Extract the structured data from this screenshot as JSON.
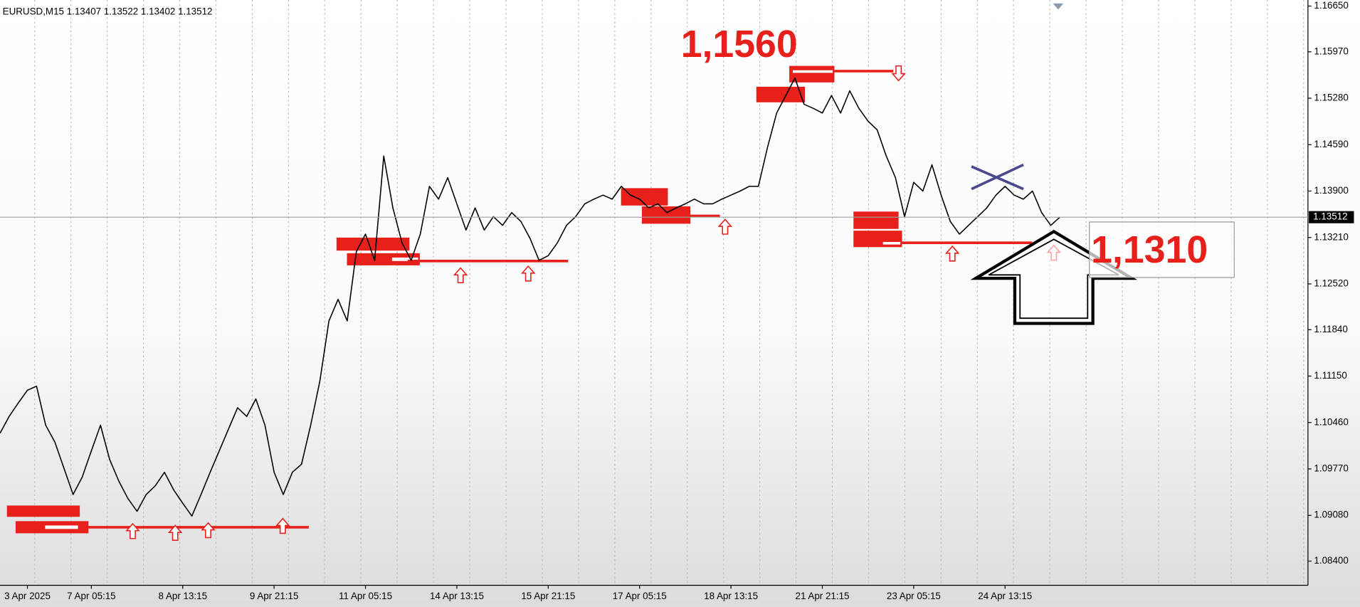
{
  "chart_data": {
    "type": "line",
    "title": "EURUSD,M15  1.13407 1.13522 1.13402 1.13512",
    "categories": [
      null,
      null,
      null,
      "3 Apr 2025",
      null,
      null,
      null,
      null,
      null,
      null,
      "7 Apr 05:15",
      null,
      null,
      null,
      null,
      null,
      null,
      null,
      null,
      null,
      "8 Apr 13:15",
      null,
      null,
      null,
      null,
      null,
      null,
      null,
      null,
      null,
      "9 Apr 21:15",
      null,
      null,
      null,
      null,
      null,
      null,
      null,
      null,
      null,
      "11 Apr 05:15",
      null,
      null,
      null,
      null,
      null,
      null,
      null,
      null,
      null,
      "14 Apr 13:15",
      null,
      null,
      null,
      null,
      null,
      null,
      null,
      null,
      null,
      "15 Apr 21:15",
      null,
      null,
      null,
      null,
      null,
      null,
      null,
      null,
      null,
      "17 Apr 05:15",
      null,
      null,
      null,
      null,
      null,
      null,
      null,
      null,
      null,
      "18 Apr 13:15",
      null,
      null,
      null,
      null,
      null,
      null,
      null,
      null,
      null,
      "21 Apr 21:15",
      null,
      null,
      null,
      null,
      null,
      null,
      null,
      null,
      null,
      "23 Apr 05:15",
      null,
      null,
      null,
      null,
      null,
      null,
      null,
      null,
      null,
      "24 Apr 13:15",
      null,
      null,
      null,
      null,
      null,
      null
    ],
    "series": [
      {
        "color": "#000000",
        "values": [
          1.103,
          1.1055,
          1.1075,
          1.1094,
          1.11,
          1.1042,
          1.1017,
          1.0978,
          1.0939,
          1.0965,
          1.1004,
          1.1042,
          1.0991,
          1.0959,
          1.0933,
          1.0914,
          1.0939,
          1.0952,
          1.0972,
          1.0946,
          1.0926,
          1.0907,
          1.0939,
          1.0972,
          1.1004,
          1.1036,
          1.1068,
          1.1055,
          1.1081,
          1.1042,
          1.0972,
          1.0939,
          1.0972,
          1.0984,
          1.1042,
          1.1107,
          1.1197,
          1.1229,
          1.1197,
          1.13,
          1.1326,
          1.1287,
          1.1442,
          1.1365,
          1.1313,
          1.1287,
          1.1326,
          1.1397,
          1.1378,
          1.141,
          1.1371,
          1.1332,
          1.1365,
          1.1332,
          1.1352,
          1.1339,
          1.1358,
          1.1345,
          1.132,
          1.1287,
          1.1294,
          1.1313,
          1.1339,
          1.1352,
          1.1371,
          1.1378,
          1.1384,
          1.1378,
          1.1397,
          1.1384,
          1.1378,
          1.1365,
          1.1371,
          1.1358,
          1.1365,
          1.1371,
          1.1378,
          1.1371,
          1.1371,
          1.1378,
          1.1384,
          1.139,
          1.1397,
          1.1397,
          1.1455,
          1.1506,
          1.1532,
          1.1558,
          1.1519,
          1.1513,
          1.1506,
          1.1532,
          1.1506,
          1.1539,
          1.1513,
          1.1494,
          1.1481,
          1.1442,
          1.141,
          1.1352,
          1.1403,
          1.139,
          1.1429,
          1.1384,
          1.1345,
          1.1326,
          1.1339,
          1.1352,
          1.1365,
          1.1384,
          1.1397,
          1.1384,
          1.1378,
          1.139,
          1.1358,
          1.1339,
          1.13512
        ]
      }
    ],
    "ylim": [
      1.0804,
      1.1674
    ],
    "yticks": [
      {
        "value": 1.1665,
        "label": "1.16650"
      },
      {
        "value": 1.1597,
        "label": "1.15970"
      },
      {
        "value": 1.1528,
        "label": "1.15280"
      },
      {
        "value": 1.1459,
        "label": "1.14590"
      },
      {
        "value": 1.139,
        "label": "1.13900"
      },
      {
        "value": 1.1321,
        "label": "1.13210"
      },
      {
        "value": 1.1252,
        "label": "1.12520"
      },
      {
        "value": 1.1184,
        "label": "1.11840"
      },
      {
        "value": 1.1115,
        "label": "1.11150"
      },
      {
        "value": 1.1046,
        "label": "1.10460"
      },
      {
        "value": 1.0977,
        "label": "1.09770"
      },
      {
        "value": 1.0908,
        "label": "1.09080"
      },
      {
        "value": 1.084,
        "label": "1.08400"
      }
    ],
    "price_label": "1.13512",
    "annotations": [
      "1,1560",
      "1,1310"
    ]
  }
}
